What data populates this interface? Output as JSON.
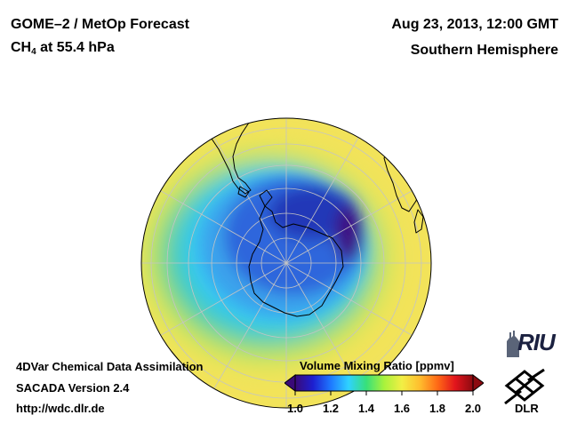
{
  "header": {
    "title": "GOME–2 / MetOp Forecast",
    "species": "CH",
    "species_sub": "4",
    "level": " at 55.4 hPa",
    "datetime": "Aug 23, 2013, 12:00 GMT",
    "region": "Southern Hemisphere"
  },
  "footer": {
    "line1": "4DVar Chemical Data Assimilation",
    "line2": "SACADA Version 2.4",
    "line3": "http://wdc.dlr.de"
  },
  "colorbar": {
    "title": "Volume Mixing Ratio [ppmv]",
    "ticks": [
      "1.0",
      "1.2",
      "1.4",
      "1.6",
      "1.8",
      "2.0"
    ],
    "range": [
      1.0,
      2.0
    ],
    "colors": [
      "#3a0a78",
      "#1d1fd0",
      "#1e78ff",
      "#2fd2ff",
      "#37e07a",
      "#a8f23c",
      "#f2ef45",
      "#ffbe2e",
      "#ff6a16",
      "#e2141c",
      "#8c0a10"
    ]
  },
  "logos": {
    "riu": "RIU",
    "dlr": "DLR"
  },
  "map": {
    "background_value_ppmv": 1.55,
    "vortex_min_ppmv": 1.0,
    "colors": {
      "yellow": "#f2e35a",
      "yellow_green": "#cfe855",
      "green": "#44cf9a",
      "cyan": "#38c8f4",
      "light_blue": "#3aa2ec",
      "blue": "#2e66dc",
      "deep_blue": "#2438b8",
      "purple": "#3c0f82",
      "grid": "#c4c4c4",
      "coast": "#000000"
    }
  }
}
